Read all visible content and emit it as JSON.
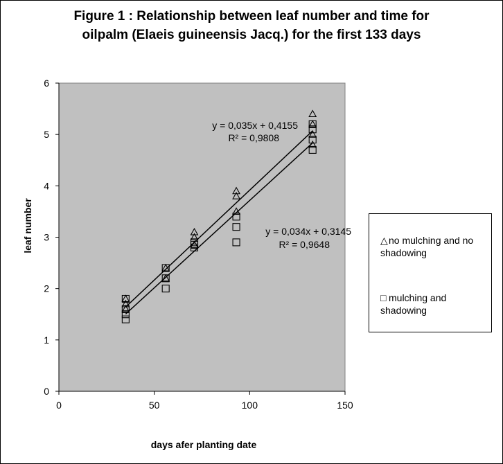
{
  "figure": {
    "title_line1": "Figure 1 : Relationship between leaf number and time for",
    "title_line2": "oilpalm (Elaeis guineensis Jacq.) for the first 133 days",
    "plot_bg": "#c0c0c0"
  },
  "chart_data": {
    "type": "scatter",
    "title": "Figure 1 : Relationship between leaf number and time for oilpalm (Elaeis guineensis Jacq.) for the first 133 days",
    "xlabel": "days afer planting  date",
    "ylabel": "leaf number",
    "xlim": [
      0,
      150
    ],
    "ylim": [
      0,
      6
    ],
    "xticks": [
      "0",
      "50",
      "100",
      "150"
    ],
    "yticks": [
      "0",
      "1",
      "2",
      "3",
      "4",
      "5",
      "6"
    ],
    "grid": false,
    "legend_position": "right",
    "series": [
      {
        "name": "no mulching and no shadowing",
        "marker": "triangle",
        "x": [
          35,
          35,
          35,
          56,
          56,
          71,
          71,
          71,
          93,
          93,
          93,
          133,
          133,
          133,
          133
        ],
        "y": [
          1.8,
          1.7,
          1.6,
          2.4,
          2.2,
          3.1,
          3.0,
          2.85,
          3.9,
          3.8,
          3.5,
          5.4,
          5.2,
          5.0,
          4.8
        ],
        "trendline": {
          "slope": 0.035,
          "intercept": 0.4155,
          "equation": "y = 0,035x  + 0,4155",
          "r2": "R² = 0,9808"
        }
      },
      {
        "name": "mulching and shadowing",
        "marker": "square",
        "x": [
          35,
          35,
          35,
          35,
          56,
          56,
          56,
          71,
          71,
          71,
          93,
          93,
          93,
          133,
          133,
          133,
          133
        ],
        "y": [
          1.8,
          1.6,
          1.5,
          1.4,
          2.4,
          2.2,
          2.0,
          2.9,
          2.85,
          2.8,
          3.4,
          3.2,
          2.9,
          5.2,
          5.1,
          4.9,
          4.7
        ],
        "trendline": {
          "slope": 0.034,
          "intercept": 0.3145,
          "equation": "y = 0,034x  + 0,3145",
          "r2": "R² = 0,9648"
        }
      }
    ]
  },
  "legend": {
    "items": [
      {
        "symbol": "△",
        "label": "no mulching and no shadowing"
      },
      {
        "symbol": "□",
        "label": "mulching and shadowing"
      }
    ]
  }
}
